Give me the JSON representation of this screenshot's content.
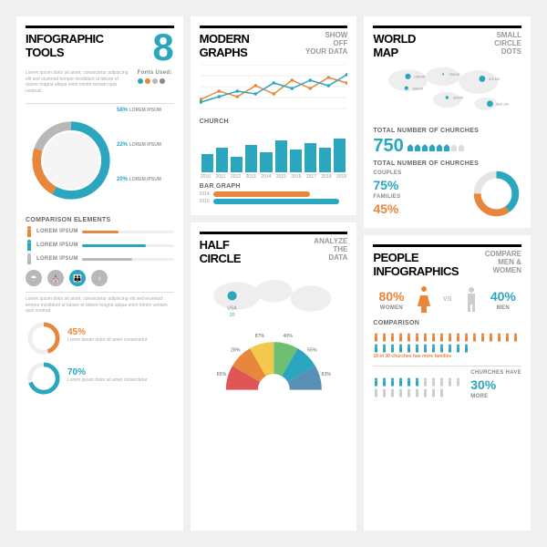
{
  "colors": {
    "teal": "#2aa6bf",
    "orange": "#e8873b",
    "grey": "#b8b8b8",
    "dark": "#333",
    "light": "#e5e5e5",
    "yellow": "#f2c94c",
    "green": "#6fbf73",
    "red": "#e05555"
  },
  "col1": {
    "panel1": {
      "title": "INFOGRAPHIC\nTOOLS",
      "big": "8",
      "fonts": "Fonts Used:",
      "lorem": "Lorem ipsum dolor sit amet, consectetur adipiscing elit sed eiusmod tempor incididunt ut labore et dolore magna aliqua enim minim veniam quis nostrud.",
      "dot_colors": [
        "#2aa6bf",
        "#e8873b",
        "#b8b8b8",
        "#888"
      ],
      "donut": {
        "segments": [
          {
            "pct": 58,
            "color": "#2aa6bf"
          },
          {
            "pct": 22,
            "color": "#e8873b"
          },
          {
            "pct": 20,
            "color": "#b8b8b8"
          }
        ]
      },
      "callouts": [
        {
          "pct": "58%",
          "txt": "LOREM IPSUM"
        },
        {
          "pct": "22%",
          "txt": "LOREM IPSUM"
        },
        {
          "pct": "20%",
          "txt": "LOREM IPSUM"
        }
      ],
      "comp_title": "COMPARISON ELEMENTS",
      "bars": [
        {
          "label": "LOREM IPSUM",
          "pct": 40,
          "color": "#e8873b"
        },
        {
          "label": "LOREM IPSUM",
          "pct": 70,
          "color": "#2aa6bf"
        },
        {
          "label": "LOREM IPSUM",
          "pct": 55,
          "color": "#b8b8b8"
        }
      ],
      "circles": [
        {
          "bg": "#b8b8b8",
          "glyph": "☂"
        },
        {
          "bg": "#b8b8b8",
          "glyph": "⛪"
        },
        {
          "bg": "#2aa6bf",
          "glyph": "👪"
        },
        {
          "bg": "#b8b8b8",
          "glyph": "♀"
        }
      ]
    },
    "panel2": {
      "mini": [
        {
          "pct": 45,
          "color": "#e8873b",
          "text": "Lorem ipsum dolor sit amet consectetur"
        },
        {
          "pct": 70,
          "color": "#2aa6bf",
          "text": "Lorem ipsum dolor sit amet consectetur"
        }
      ]
    }
  },
  "col2": {
    "panel1": {
      "title": "MODERN\nGRAPHS",
      "sub": "SHOW\nOFF\nYOUR DATA",
      "line": {
        "series": [
          {
            "color": "#e8873b",
            "vals": [
              20,
              35,
              25,
              45,
              30,
              55,
              40,
              60,
              50
            ]
          },
          {
            "color": "#2aa6bf",
            "vals": [
              15,
              25,
              35,
              30,
              50,
              40,
              55,
              45,
              65
            ]
          }
        ]
      },
      "church_title": "CHURCH",
      "bars": {
        "years": [
          "2010",
          "2011",
          "2012",
          "2013",
          "2014",
          "2015",
          "2016",
          "2017",
          "2018",
          "2019"
        ],
        "vals": [
          40,
          55,
          35,
          60,
          45,
          70,
          50,
          65,
          55,
          75
        ],
        "color": "#2aa6bf"
      },
      "bargraph_title": "BAR GRAPH",
      "hbars": [
        {
          "year": "2014",
          "pct": 65,
          "color": "#e8873b"
        },
        {
          "year": "2016",
          "pct": 85,
          "color": "#2aa6bf"
        }
      ]
    },
    "panel2": {
      "title": "HALF\nCIRCLE",
      "sub": "ANALYZE\nTHE\nDATA",
      "map_label": "USA",
      "map_val": "20",
      "slices": [
        {
          "pct": 65,
          "color": "#e05555"
        },
        {
          "pct": 28,
          "color": "#e8873b"
        },
        {
          "pct": 87,
          "color": "#f2c94c"
        },
        {
          "pct": 40,
          "color": "#6fbf73"
        },
        {
          "pct": 55,
          "color": "#2aa6bf"
        },
        {
          "pct": 83,
          "color": "#5a8fb5"
        }
      ]
    }
  },
  "col3": {
    "panel1": {
      "title": "WORLD\nMAP",
      "sub": "SMALL\nCIRCLE\nDOTS",
      "points": [
        {
          "c": "CAN",
          "v": 90
        },
        {
          "c": "FRA",
          "v": 30
        },
        {
          "c": "CHI",
          "v": 100
        },
        {
          "c": "USA",
          "v": 60
        },
        {
          "c": "SFA",
          "v": 50
        },
        {
          "c": "AUS",
          "v": 100
        }
      ],
      "total_title": "TOTAL NUMBER OF CHURCHES",
      "total": "750",
      "total2_title": "TOTAL NUMBER OF CHURCHES",
      "couples_label": "COUPLES",
      "couples": "75%",
      "families_label": "FAMILIES",
      "families": "45%",
      "ring": [
        {
          "pct": 40,
          "color": "#2aa6bf"
        },
        {
          "pct": 35,
          "color": "#e8873b"
        },
        {
          "pct": 25,
          "color": "#e5e5e5"
        }
      ]
    },
    "panel2": {
      "title": "PEOPLE\nINFOGRAPHICS",
      "sub": "COMPARE\nMEN &\nWOMEN",
      "women_pct": "80%",
      "women_label": "WOMEN",
      "men_pct": "40%",
      "men_label": "MEN",
      "comp_title": "COMPARISON",
      "note": "18 of 30 churches has more families",
      "more_label": "CHURCHES HAVE",
      "more_pct": "30%",
      "more_word": "MORE"
    }
  }
}
